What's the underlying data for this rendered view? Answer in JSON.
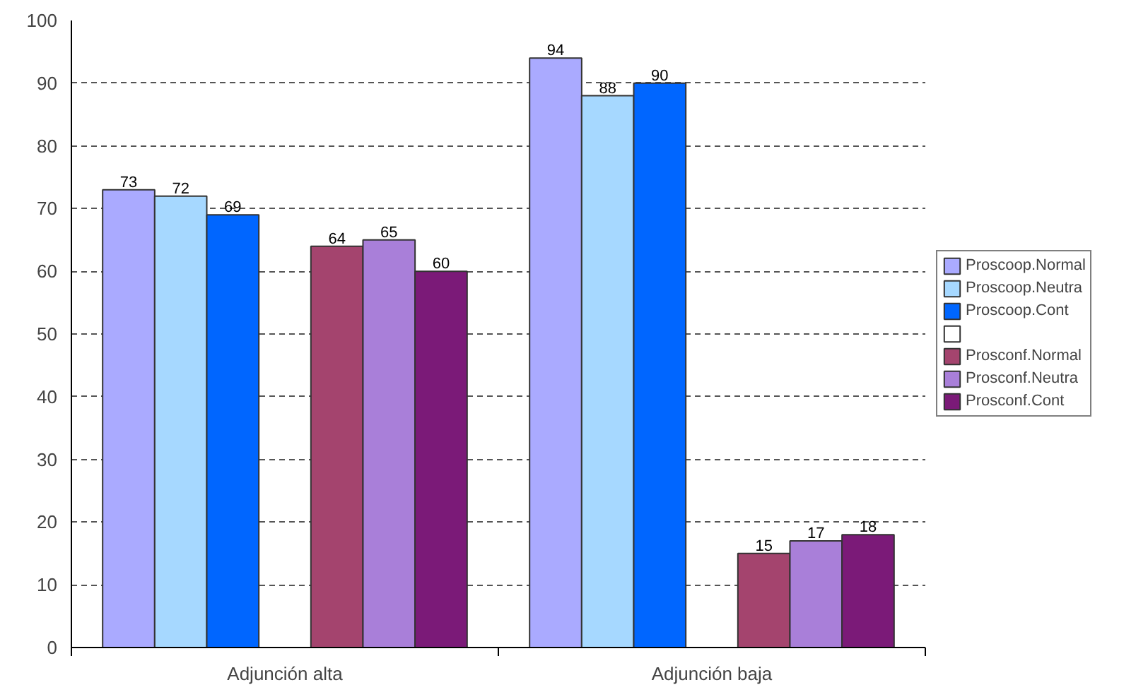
{
  "chart_data": {
    "type": "bar",
    "categories": [
      "Adjunción alta",
      "Adjunción baja"
    ],
    "series": [
      {
        "name": "Proscoop.Normal",
        "color": "#aaaaff",
        "values": [
          73,
          94
        ]
      },
      {
        "name": "Proscoop.Neutra",
        "color": "#a6d8ff",
        "values": [
          72,
          88
        ]
      },
      {
        "name": "Proscoop.Cont",
        "color": "#0066ff",
        "values": [
          69,
          90
        ]
      },
      {
        "color": "#ffffff",
        "values": [
          null,
          null
        ]
      },
      {
        "name": "Prosconf.Normal",
        "color": "#a4446e",
        "values": [
          64,
          15
        ]
      },
      {
        "name": "Prosconf.Neutra",
        "color": "#a97fd9",
        "values": [
          65,
          17
        ]
      },
      {
        "name": "Prosconf.Cont",
        "color": "#7b1a78",
        "values": [
          60,
          18
        ]
      }
    ],
    "ylim": [
      0,
      100
    ],
    "yticks": [
      0,
      10,
      20,
      30,
      40,
      50,
      60,
      70,
      80,
      90,
      100
    ],
    "grid": "y",
    "legend": "right",
    "data_labels": true
  }
}
